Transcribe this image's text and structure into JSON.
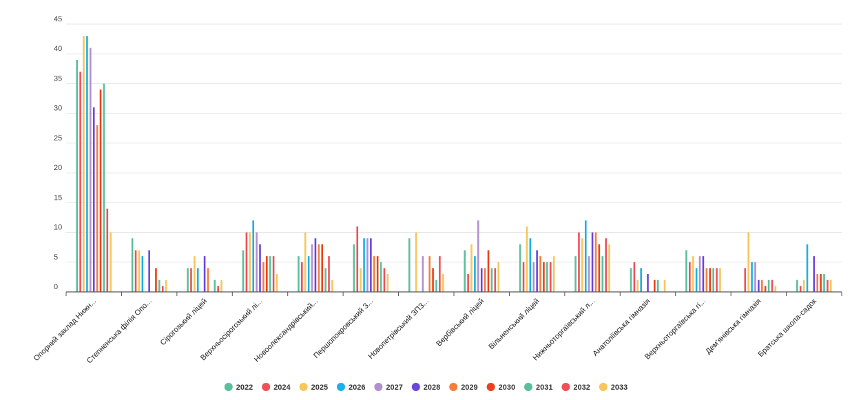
{
  "chart_data": {
    "type": "bar",
    "ylim": [
      0,
      45
    ],
    "yticks": [
      0,
      5,
      10,
      15,
      20,
      25,
      30,
      35,
      40,
      45
    ],
    "grid": true,
    "legend_position": "bottom",
    "categories": [
      "Опорний заклад Нижн...",
      "Степненська філія Опо...",
      "Сірогозький ліцей",
      "Верхньосірогозький лі...",
      "Новоолександрівський...",
      "Першопокровський З...",
      "Новопетрівський ЗПЗ...",
      "Вербівський ліцей",
      "Вільненський ліцей",
      "Нижньоторгаївський л...",
      "Анатоліївська гімназія",
      "Верхньоторгаївська гі...",
      "Дем'янівська гімназія",
      "Братська школа-садок"
    ],
    "series": [
      {
        "name": "2022",
        "color": "#5bbf9a",
        "values": [
          39,
          9,
          4,
          7,
          6,
          8,
          9,
          7,
          8,
          6,
          4,
          7,
          0,
          2
        ]
      },
      {
        "name": "2024",
        "color": "#f0505a",
        "values": [
          37,
          7,
          4,
          10,
          5,
          11,
          0,
          3,
          5,
          10,
          5,
          5,
          4,
          1
        ]
      },
      {
        "name": "2025",
        "color": "#f7c65c",
        "values": [
          43,
          7,
          6,
          10,
          10,
          4,
          10,
          8,
          11,
          9,
          2,
          6,
          10,
          2
        ]
      },
      {
        "name": "2026",
        "color": "#1ab2e8",
        "values": [
          43,
          6,
          4,
          12,
          6,
          9,
          0,
          6,
          9,
          12,
          4,
          4,
          5,
          8
        ]
      },
      {
        "name": "2027",
        "color": "#b38fd1",
        "values": [
          41,
          0,
          0,
          10,
          8,
          9,
          6,
          12,
          5,
          6,
          0,
          6,
          5,
          0
        ]
      },
      {
        "name": "2028",
        "color": "#6b47dc",
        "values": [
          31,
          7,
          6,
          8,
          9,
          9,
          0,
          4,
          7,
          10,
          3,
          6,
          2,
          6
        ]
      },
      {
        "name": "2029",
        "color": "#f47e3c",
        "values": [
          28,
          0,
          4,
          5,
          8,
          6,
          6,
          4,
          6,
          10,
          0,
          4,
          2,
          3
        ]
      },
      {
        "name": "2030",
        "color": "#e8431c",
        "values": [
          34,
          4,
          0,
          6,
          8,
          6,
          4,
          7,
          5,
          8,
          2,
          4,
          1,
          3
        ]
      },
      {
        "name": "2031",
        "color": "#5bbf9a",
        "values": [
          35,
          2,
          2,
          6,
          4,
          5,
          2,
          4,
          5,
          6,
          2,
          4,
          2,
          3
        ]
      },
      {
        "name": "2032",
        "color": "#f0505a",
        "values": [
          14,
          1,
          1,
          6,
          6,
          4,
          6,
          4,
          5,
          9,
          0,
          4,
          2,
          2
        ]
      },
      {
        "name": "2033",
        "color": "#f7c65c",
        "values": [
          10,
          2,
          2,
          3,
          2,
          3,
          3,
          5,
          6,
          8,
          2,
          4,
          1,
          2
        ]
      }
    ]
  }
}
